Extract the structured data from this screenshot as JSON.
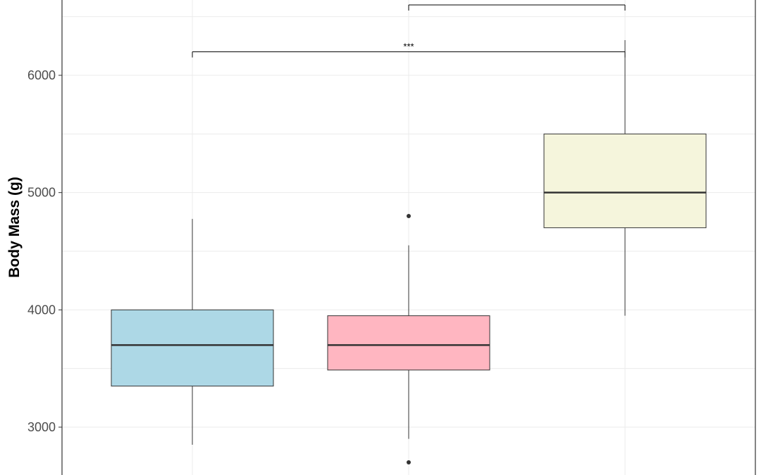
{
  "chart_data": {
    "type": "box",
    "title": "",
    "xlabel": "",
    "ylabel": "Body Mass (g)",
    "ylim": [
      2500,
      6700
    ],
    "yticks": [
      3000,
      4000,
      5000,
      6000
    ],
    "grid": true,
    "legend": "none",
    "boxes": [
      {
        "color": "#add8e6",
        "min": 2850,
        "q1": 3350,
        "median": 3700,
        "q3": 4000,
        "max": 4775,
        "outliers": []
      },
      {
        "color": "#ffb6c1",
        "min": 2900,
        "q1": 3487,
        "median": 3700,
        "q3": 3950,
        "max": 4550,
        "outliers": [
          4800,
          2700
        ]
      },
      {
        "color": "#f5f5dc",
        "min": 3950,
        "q1": 4700,
        "median": 5000,
        "q3": 5500,
        "max": 6300,
        "outliers": []
      }
    ],
    "comparisons": [
      {
        "from": 0,
        "to": 2,
        "y": 6200,
        "label": "***"
      },
      {
        "from": 1,
        "to": 2,
        "y": 6600,
        "label": ""
      }
    ],
    "colors": {
      "grid": "#ebebeb",
      "axis": "#333333",
      "outline": "#333333"
    }
  }
}
